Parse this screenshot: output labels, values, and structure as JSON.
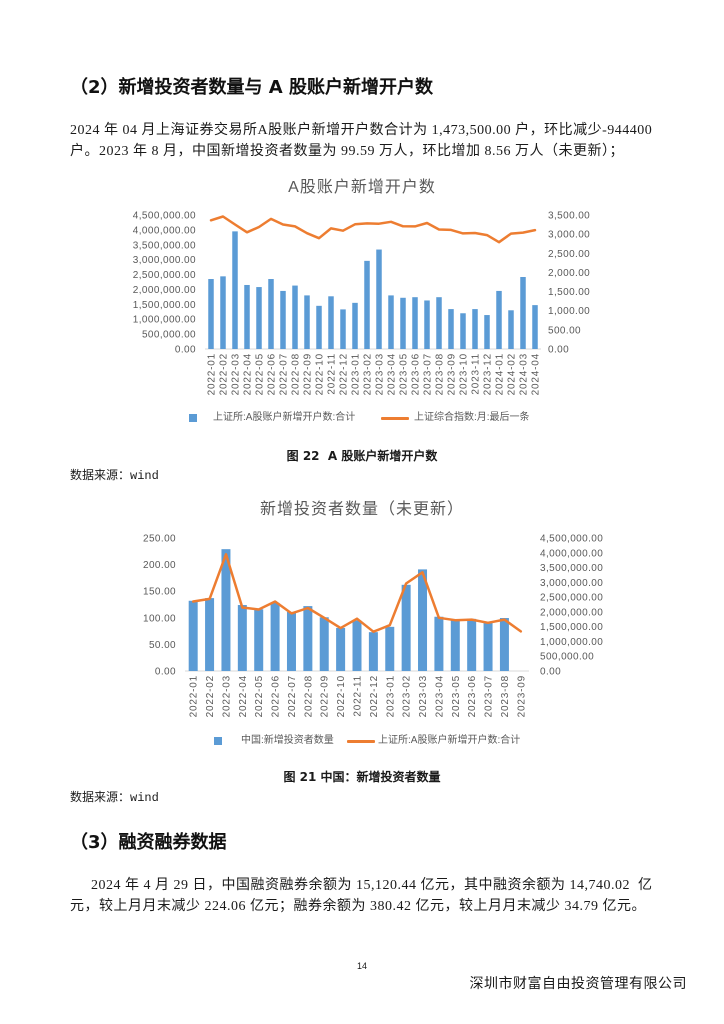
{
  "section2": {
    "heading": "（2）新增投资者数量与 A 股账户新增开户数",
    "paragraph_lines": [
      "2024 年 04 月上海证券交易所A股账户新增开户数合计为 1,473,500.00 户，环比减少-944400",
      "户。2023 年 8 月，中国新增投资者数量为 99.59 万人，环比增加 8.56 万人（未更新）；"
    ]
  },
  "figures": [
    {
      "caption": "图 22  A 股账户新增开户数",
      "source": "数据来源：wind"
    },
    {
      "caption": "图 21 中国：新增投资者数量",
      "source": "数据来源：wind"
    }
  ],
  "section3": {
    "heading": "（3）融资融券数据",
    "paragraph_lines": [
      "2024 年 4 月 29 日，中国融资融券余额为 15,120.44 亿元，其中融资余额为 14,740.02  亿",
      "元，较上月月末减少 224.06 亿元；融券余额为 380.42 亿元，较上月月末减少 34.79 亿元。"
    ]
  },
  "page_number": "14",
  "footer_company": "深圳市财富自由投资管理有限公司",
  "colors": {
    "bar": "#5b9bd5",
    "line": "#ed7d31",
    "chart_text": "#595959",
    "axis_line": "#d9d9d9"
  },
  "chart_data": [
    {
      "type": "bar",
      "title": "A股账户新增开户数",
      "categories": [
        "2022-01",
        "2022-02",
        "2022-03",
        "2022-04",
        "2022-05",
        "2022-06",
        "2022-07",
        "2022-08",
        "2022-09",
        "2022-10",
        "2022-11",
        "2022-12",
        "2023-01",
        "2023-02",
        "2023-03",
        "2023-04",
        "2023-05",
        "2023-06",
        "2023-07",
        "2023-08",
        "2023-09",
        "2023-10",
        "2023-11",
        "2023-12",
        "2024-01",
        "2024-02",
        "2024-03",
        "2024-04"
      ],
      "series": [
        {
          "name": "上证所:A股账户新增开户数:合计",
          "type": "bar",
          "axis": "left",
          "values": [
            2350000,
            2440000,
            3950000,
            2150000,
            2080000,
            2350000,
            1950000,
            2130000,
            1800000,
            1450000,
            1770000,
            1330000,
            1550000,
            2960000,
            3340000,
            1800000,
            1720000,
            1740000,
            1630000,
            1740000,
            1340000,
            1200000,
            1340000,
            1140000,
            1950000,
            1300000,
            2417900,
            1473500
          ]
        },
        {
          "name": "上证综合指数:月:最后一条",
          "type": "line",
          "axis": "right",
          "values": [
            3361,
            3462,
            3252,
            3047,
            3186,
            3399,
            3253,
            3202,
            3024,
            2893,
            3151,
            3089,
            3256,
            3280,
            3273,
            3323,
            3205,
            3202,
            3291,
            3120,
            3110,
            3019,
            3030,
            2975,
            2789,
            3015,
            3041,
            3105
          ]
        }
      ],
      "y_left": {
        "lim": [
          0,
          4500000
        ],
        "ticks": [
          "0.00",
          "500,000.00",
          "1,000,000.00",
          "1,500,000.00",
          "2,000,000.00",
          "2,500,000.00",
          "3,000,000.00",
          "3,500,000.00",
          "4,000,000.00",
          "4,500,000.00"
        ]
      },
      "y_right": {
        "lim": [
          0,
          3500
        ],
        "ticks": [
          "0.00",
          "500.00",
          "1,000.00",
          "1,500.00",
          "2,000.00",
          "2,500.00",
          "3,000.00",
          "3,500.00"
        ]
      },
      "grid": false,
      "legend": "bottom"
    },
    {
      "type": "bar",
      "title": "新增投资者数量（未更新）",
      "categories": [
        "2022-01",
        "2022-02",
        "2022-03",
        "2022-04",
        "2022-05",
        "2022-06",
        "2022-07",
        "2022-08",
        "2022-09",
        "2022-10",
        "2022-11",
        "2022-12",
        "2023-01",
        "2023-02",
        "2023-03",
        "2023-04",
        "2023-05",
        "2023-06",
        "2023-07",
        "2023-08",
        "2023-09"
      ],
      "series": [
        {
          "name": "中国:新增投资者数量",
          "type": "bar",
          "axis": "left",
          "values": [
            132,
            137,
            229,
            124,
            116,
            128,
            111,
            122,
            101,
            81,
            95,
            73,
            83,
            162,
            191,
            102,
            97,
            98,
            91.03,
            99.59,
            null
          ]
        },
        {
          "name": "上证所:A股账户新增开户数:合计",
          "type": "line",
          "axis": "right",
          "values": [
            2350000,
            2440000,
            3950000,
            2150000,
            2080000,
            2350000,
            1950000,
            2130000,
            1800000,
            1450000,
            1770000,
            1330000,
            1550000,
            2960000,
            3340000,
            1800000,
            1720000,
            1740000,
            1630000,
            1740000,
            1340000
          ]
        }
      ],
      "y_left": {
        "lim": [
          0,
          250
        ],
        "ticks": [
          "0.00",
          "50.00",
          "100.00",
          "150.00",
          "200.00",
          "250.00"
        ]
      },
      "y_right": {
        "lim": [
          0,
          4500000
        ],
        "ticks": [
          "0.00",
          "500,000.00",
          "1,000,000.00",
          "1,500,000.00",
          "2,000,000.00",
          "2,500,000.00",
          "3,000,000.00",
          "3,500,000.00",
          "4,000,000.00",
          "4,500,000.00"
        ]
      },
      "grid": false,
      "legend": "bottom"
    }
  ]
}
